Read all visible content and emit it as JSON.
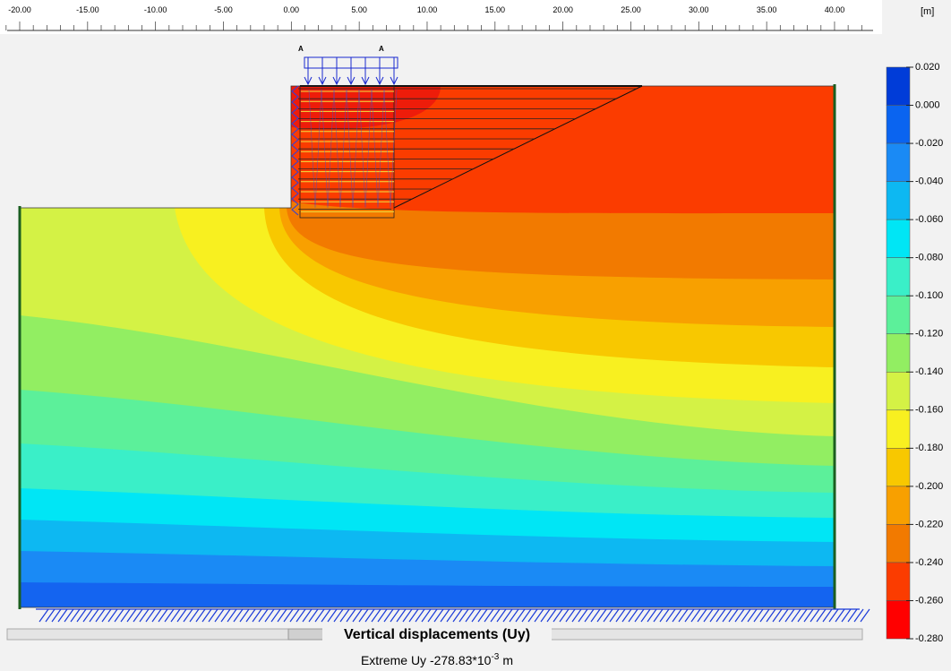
{
  "ruler": {
    "ticks": [
      "-20.00",
      "-15.00",
      "-10.00",
      "-5.00",
      "0.00",
      "5.00",
      "10.00",
      "15.00",
      "20.00",
      "25.00",
      "30.00",
      "35.00",
      "40.00"
    ],
    "unit": "[m]"
  },
  "model": {
    "load_labels": [
      "A",
      "A"
    ]
  },
  "legend": {
    "values": [
      "0.020",
      "0.000",
      "-0.020",
      "-0.040",
      "-0.060",
      "-0.080",
      "-0.100",
      "-0.120",
      "-0.140",
      "-0.160",
      "-0.180",
      "-0.200",
      "-0.220",
      "-0.240",
      "-0.260",
      "-0.280"
    ]
  },
  "plot": {
    "title": "Vertical displacements (Uy)",
    "extreme": {
      "text": "Extreme Uy -278.83*10",
      "exponent": "-3",
      "unit": "m"
    }
  }
}
